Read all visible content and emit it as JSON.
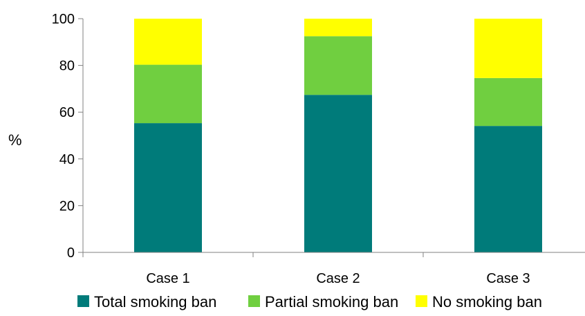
{
  "chart_data": {
    "type": "bar",
    "stacked": true,
    "categories": [
      "Case 1",
      "Case 2",
      "Case 3"
    ],
    "series": [
      {
        "name": "Total smoking ban",
        "values": [
          55.3,
          67.4,
          54.1
        ],
        "color": "#007B7A"
      },
      {
        "name": "Partial smoking ban",
        "values": [
          25.0,
          25.1,
          20.5
        ],
        "color": "#70CF40"
      },
      {
        "name": "No smoking ban",
        "values": [
          19.7,
          7.5,
          25.4
        ],
        "color": "#FFFF00"
      }
    ],
    "ylabel": "%",
    "ylim": [
      0,
      100
    ],
    "yticks": [
      0,
      20,
      40,
      60,
      80,
      100
    ],
    "grid": false,
    "legend_position": "bottom"
  }
}
